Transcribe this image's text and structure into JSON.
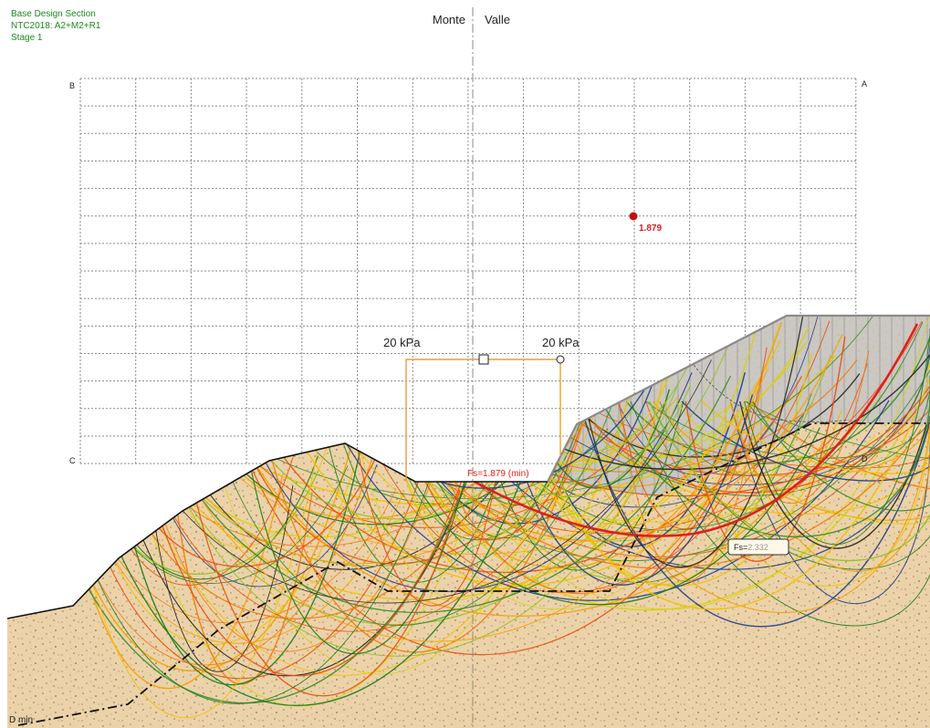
{
  "info": {
    "title": "Base Design Section",
    "norm": "NTC2018: A2+M2+R1",
    "stage": "Stage 1"
  },
  "labels": {
    "monte": "Monte",
    "valle": "Valle",
    "corner_a": "A",
    "corner_b": "B",
    "corner_c": "C",
    "corner_d": "D",
    "d_min": "D min",
    "center_fs": "1.879",
    "fs_min": "Fs=1.879 (min)",
    "fs_box_prefix": "Fs=",
    "fs_box_value": "2.332",
    "load_left": "20 kPa",
    "load_right": "20 kPa"
  },
  "colors": {
    "info_text": "#1e8a1e",
    "soil": "#ecd2a8",
    "soil_speckle": "#9a8a74",
    "fill_zone": "#bdbdbd",
    "critical_surface": "#e0201a",
    "load_box": "#e8a030",
    "center_dot": "#c01010",
    "surface_palette": [
      "#1a7a1a",
      "#3a8c2a",
      "#8fc01e",
      "#d8d010",
      "#f0c000",
      "#f5a000",
      "#f07a10",
      "#e85010"
    ]
  }
}
